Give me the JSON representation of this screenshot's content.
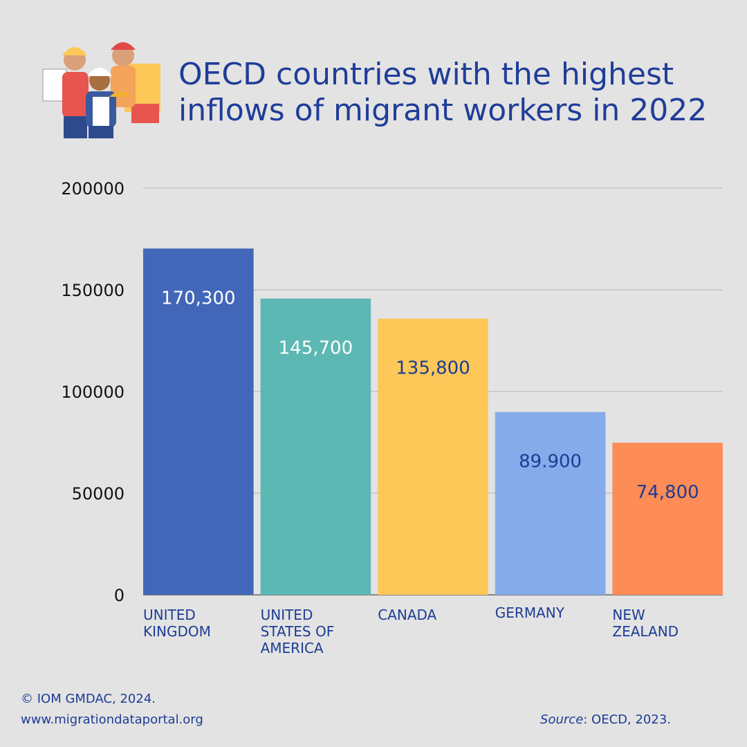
{
  "chart_data": {
    "type": "bar",
    "title": "OECD countries with the highest inflows of migrant workers in 2022",
    "categories": [
      "UNITED KINGDOM",
      "UNITED STATES OF AMERICA",
      "CANADA",
      "GERMANY",
      "NEW ZEALAND"
    ],
    "values": [
      170300,
      145700,
      135800,
      89900,
      74800
    ],
    "value_labels": [
      "170,300",
      "145,700",
      "135,800",
      "89.900",
      "74,800"
    ],
    "colors": [
      "#4267b8",
      "#5db8b4",
      "#fdc858",
      "#86abea",
      "#fe8c56"
    ],
    "value_label_colors": [
      "#ffffff",
      "#ffffff",
      "#1d3c94",
      "#1d3c94",
      "#1d3c94"
    ],
    "ylim": [
      0,
      200000
    ],
    "yticks": [
      0,
      50000,
      100000,
      150000,
      200000
    ],
    "grid": true
  },
  "credit": "© IOM GMDAC, 2024.",
  "website": "www.migrationdataportal.org",
  "source": {
    "label": "Source",
    "text": ": OECD, 2023."
  }
}
